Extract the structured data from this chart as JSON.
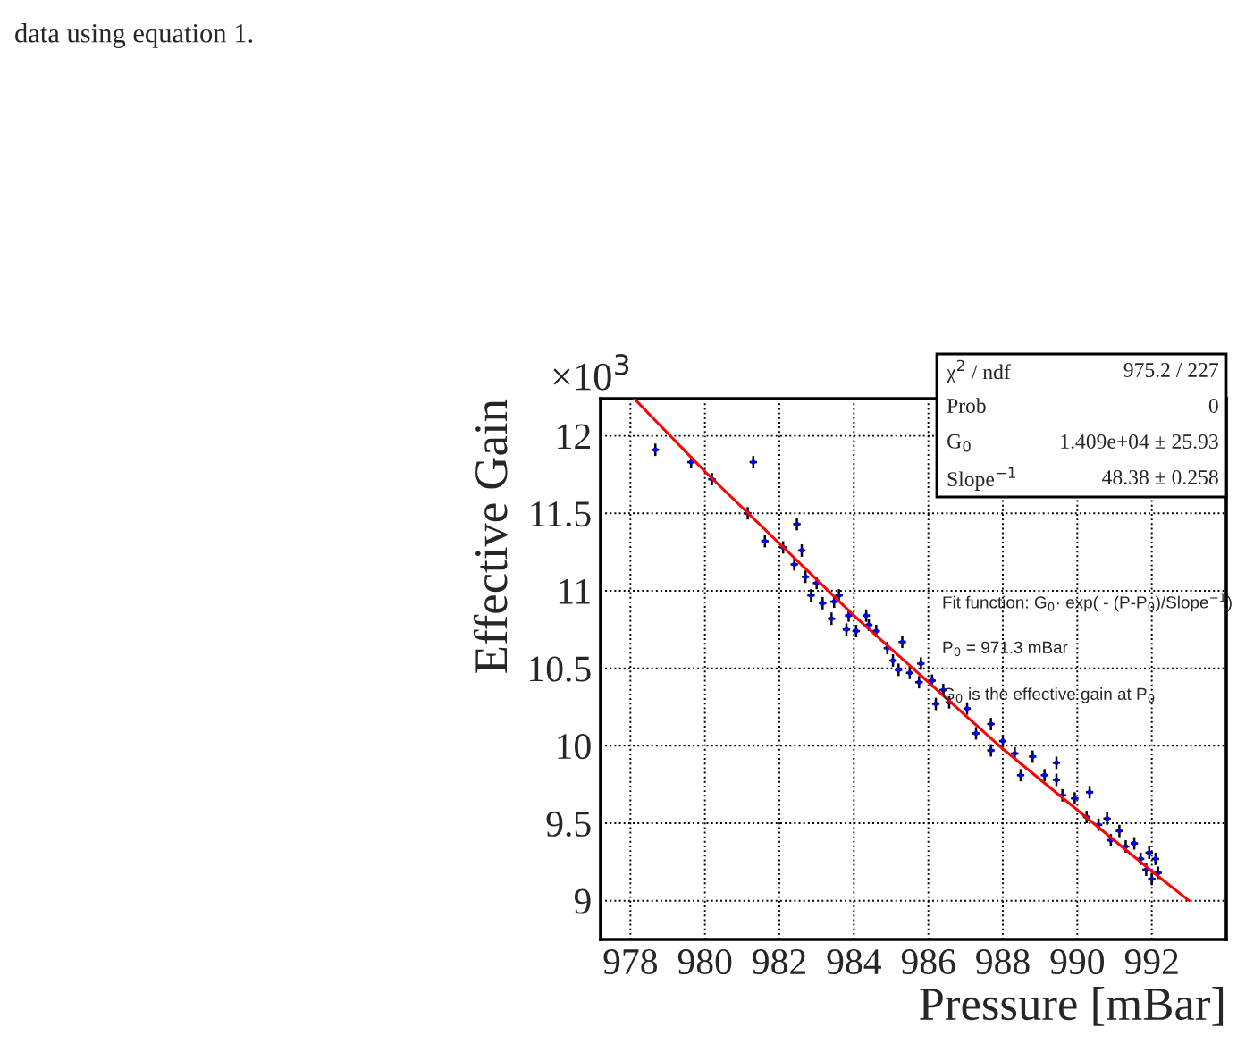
{
  "chart_data": {
    "type": "scatter",
    "xlabel": "Pressure [mBar]",
    "ylabel": "Effective Gain",
    "xlim": [
      977.2,
      994.0
    ],
    "ylim": [
      8.75,
      12.24
    ],
    "xticks": [
      978,
      980,
      982,
      984,
      986,
      988,
      990,
      992
    ],
    "yticks": [
      9,
      9.5,
      10,
      10.5,
      11,
      11.5,
      12
    ],
    "grid": true,
    "marker": "circle",
    "annotations": [
      "data using equation 1.",
      "×10$^{3}$",
      "χ$^{2}$ / ndf",
      "975.2 / 227",
      "Prob",
      "0",
      "G$_{0}$",
      "1.409e+04 ± 25.93",
      "Slope$^{−1}$",
      "48.38 ± 0.258",
      "Fit function: G$_{0}$· exp( - (P-P$_{0}$)/Slope$^{−1}$)",
      "P$_{0}$ = 971.3 mBar",
      "G$_{0}$ is the effective gain at P$_{0}$"
    ],
    "series": [
      {
        "color": "#0000ff",
        "x": [
          978.67,
          979.63,
          980.19,
          981.3,
          981.15,
          981.61,
          982.1,
          982.47,
          982.4,
          982.6,
          982.7,
          982.85,
          983.0,
          983.16,
          983.47,
          983.6,
          983.4,
          983.86,
          983.8,
          984.06,
          984.33,
          984.4,
          984.6,
          984.9,
          985.05,
          985.3,
          985.2,
          985.5,
          985.8,
          986.1,
          986.4,
          985.75,
          986.2,
          986.56,
          987.04,
          987.28,
          987.68,
          988.0,
          988.32,
          988.48,
          988.8,
          989.12,
          989.44,
          989.6,
          989.93,
          990.33,
          990.25,
          990.57,
          990.8,
          990.9,
          991.13,
          991.3,
          991.53,
          991.7,
          991.85,
          992.0,
          992.1,
          991.93,
          992.17,
          989.44,
          987.68
        ],
        "values": [
          11.91,
          11.83,
          11.72,
          11.83,
          11.5,
          11.32,
          11.28,
          11.43,
          11.17,
          11.26,
          11.09,
          10.97,
          11.05,
          10.92,
          10.93,
          10.97,
          10.82,
          10.84,
          10.75,
          10.74,
          10.84,
          10.78,
          10.74,
          10.63,
          10.55,
          10.67,
          10.49,
          10.47,
          10.53,
          10.42,
          10.36,
          10.41,
          10.27,
          10.28,
          10.24,
          10.08,
          10.14,
          10.03,
          9.95,
          9.81,
          9.93,
          9.81,
          9.78,
          9.68,
          9.66,
          9.7,
          9.54,
          9.49,
          9.53,
          9.39,
          9.45,
          9.35,
          9.37,
          9.27,
          9.2,
          9.14,
          9.27,
          9.31,
          9.18,
          9.89,
          9.97
        ],
        "errors": [
          0.04,
          0.04,
          0.04,
          0.04,
          0.04,
          0.04,
          0.04,
          0.04,
          0.04,
          0.04,
          0.04,
          0.04,
          0.04,
          0.04,
          0.04,
          0.04,
          0.04,
          0.04,
          0.04,
          0.04,
          0.04,
          0.04,
          0.04,
          0.04,
          0.04,
          0.04,
          0.04,
          0.04,
          0.04,
          0.04,
          0.04,
          0.04,
          0.04,
          0.04,
          0.04,
          0.04,
          0.04,
          0.04,
          0.04,
          0.04,
          0.04,
          0.04,
          0.04,
          0.04,
          0.04,
          0.04,
          0.04,
          0.04,
          0.04,
          0.04,
          0.04,
          0.04,
          0.04,
          0.04,
          0.04,
          0.04,
          0.04,
          0.04,
          0.04,
          0.04,
          0.04
        ],
        "xerrors": [
          0.1,
          0.1,
          0.1,
          0.1,
          0.1,
          0.1,
          0.1,
          0.1,
          0.1,
          0.1,
          0.1,
          0.1,
          0.1,
          0.1,
          0.1,
          0.1,
          0.1,
          0.1,
          0.1,
          0.1,
          0.1,
          0.1,
          0.1,
          0.1,
          0.1,
          0.1,
          0.1,
          0.1,
          0.1,
          0.1,
          0.1,
          0.1,
          0.1,
          0.1,
          0.1,
          0.1,
          0.1,
          0.1,
          0.1,
          0.1,
          0.1,
          0.1,
          0.1,
          0.1,
          0.1,
          0.1,
          0.1,
          0.1,
          0.1,
          0.1,
          0.1,
          0.1,
          0.1,
          0.1,
          0.1,
          0.1,
          0.1,
          0.1,
          0.1,
          0.1,
          0.1
        ]
      },
      {
        "type": "line",
        "color": "#ff0000",
        "marker": "none",
        "x": [
          978.1,
          980,
          984,
          988,
          992,
          993
        ],
        "values": [
          12.24,
          11.77,
          10.84,
          9.98,
          9.19,
          9.0
        ]
      }
    ]
  }
}
